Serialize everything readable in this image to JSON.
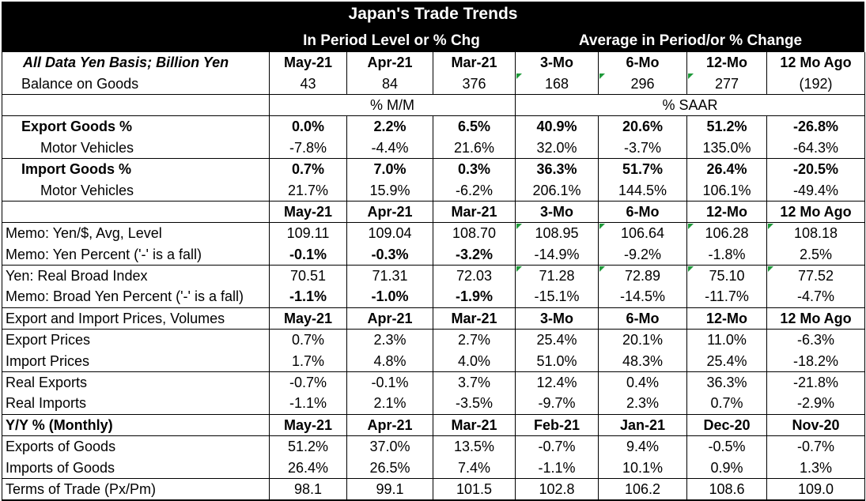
{
  "title": "Japan's Trade Trends",
  "subtitle_left": "In Period Level or % Chg",
  "subtitle_right": "Average in Period/or % Change",
  "header": {
    "label": "All Data Yen Basis; Billion Yen",
    "cols": [
      "May-21",
      "Apr-21",
      "Mar-21",
      "3-Mo",
      "6-Mo",
      "12-Mo",
      "12 Mo Ago"
    ]
  },
  "balance": {
    "label": "Balance on Goods",
    "values": [
      "43",
      "84",
      "376",
      "168",
      "296",
      "277",
      "(192)"
    ]
  },
  "pct_labels": {
    "mm": "% M/M",
    "saar": "% SAAR"
  },
  "export_goods": {
    "label": "Export Goods %",
    "values": [
      "0.0%",
      "2.2%",
      "6.5%",
      "40.9%",
      "20.6%",
      "51.2%",
      "-26.8%"
    ]
  },
  "export_mv": {
    "label": "Motor Vehicles",
    "values": [
      "-7.8%",
      "-4.4%",
      "21.6%",
      "32.0%",
      "-3.7%",
      "135.0%",
      "-64.3%"
    ]
  },
  "import_goods": {
    "label": "Import Goods %",
    "values": [
      "0.7%",
      "7.0%",
      "0.3%",
      "36.3%",
      "51.7%",
      "26.4%",
      "-20.5%"
    ]
  },
  "import_mv": {
    "label": "Motor Vehicles",
    "values": [
      "21.7%",
      "15.9%",
      "-6.2%",
      "206.1%",
      "144.5%",
      "106.1%",
      "-49.4%"
    ]
  },
  "header2": {
    "cols": [
      "May-21",
      "Apr-21",
      "Mar-21",
      "3-Mo",
      "6-Mo",
      "12-Mo",
      "12 Mo Ago"
    ]
  },
  "yen_level": {
    "label": "Memo: Yen/$, Avg, Level",
    "values": [
      "109.11",
      "109.04",
      "108.70",
      "108.95",
      "106.64",
      "106.28",
      "108.18"
    ]
  },
  "yen_pct": {
    "label": "Memo: Yen Percent ('-' is a fall)",
    "values": [
      "-0.1%",
      "-0.3%",
      "-3.2%",
      "-14.9%",
      "-9.2%",
      "-1.8%",
      "2.5%"
    ]
  },
  "broad_index": {
    "label": "Yen: Real Broad Index",
    "values": [
      "70.51",
      "71.31",
      "72.03",
      "71.28",
      "72.89",
      "75.10",
      "77.52"
    ]
  },
  "broad_pct": {
    "label": "Memo: Broad Yen Percent ('-' is a fall)",
    "values": [
      "-1.1%",
      "-1.0%",
      "-1.9%",
      "-15.1%",
      "-14.5%",
      "-11.7%",
      "-4.7%"
    ]
  },
  "prices_header": {
    "label": "Export and Import Prices, Volumes",
    "cols": [
      "May-21",
      "Apr-21",
      "Mar-21",
      "3-Mo",
      "6-Mo",
      "12-Mo",
      "12 Mo Ago"
    ]
  },
  "export_prices": {
    "label": "Export Prices",
    "values": [
      "0.7%",
      "2.3%",
      "2.7%",
      "25.4%",
      "20.1%",
      "11.0%",
      "-6.3%"
    ]
  },
  "import_prices": {
    "label": "Import Prices",
    "values": [
      "1.7%",
      "4.8%",
      "4.0%",
      "51.0%",
      "48.3%",
      "25.4%",
      "-18.2%"
    ]
  },
  "real_exports": {
    "label": "Real Exports",
    "values": [
      "-0.7%",
      "-0.1%",
      "3.7%",
      "12.4%",
      "0.4%",
      "36.3%",
      "-21.8%"
    ]
  },
  "real_imports": {
    "label": "Real Imports",
    "values": [
      "-1.1%",
      "2.1%",
      "-3.5%",
      "-9.7%",
      "2.3%",
      "0.7%",
      "-2.9%"
    ]
  },
  "yy_header": {
    "label": "Y/Y % (Monthly)",
    "cols": [
      "May-21",
      "Apr-21",
      "Mar-21",
      "Feb-21",
      "Jan-21",
      "Dec-20",
      "Nov-20"
    ]
  },
  "yy_exports": {
    "label": "Exports of Goods",
    "values": [
      "51.2%",
      "37.0%",
      "13.5%",
      "-0.7%",
      "9.4%",
      "-0.5%",
      "-0.7%"
    ]
  },
  "yy_imports": {
    "label": "Imports of Goods",
    "values": [
      "26.4%",
      "26.5%",
      "7.4%",
      "-1.1%",
      "10.1%",
      "0.9%",
      "1.3%"
    ]
  },
  "terms": {
    "label": "Terms of Trade (Px/Pm)",
    "values": [
      "98.1",
      "99.1",
      "101.5",
      "102.8",
      "106.2",
      "108.6",
      "109.0"
    ]
  }
}
